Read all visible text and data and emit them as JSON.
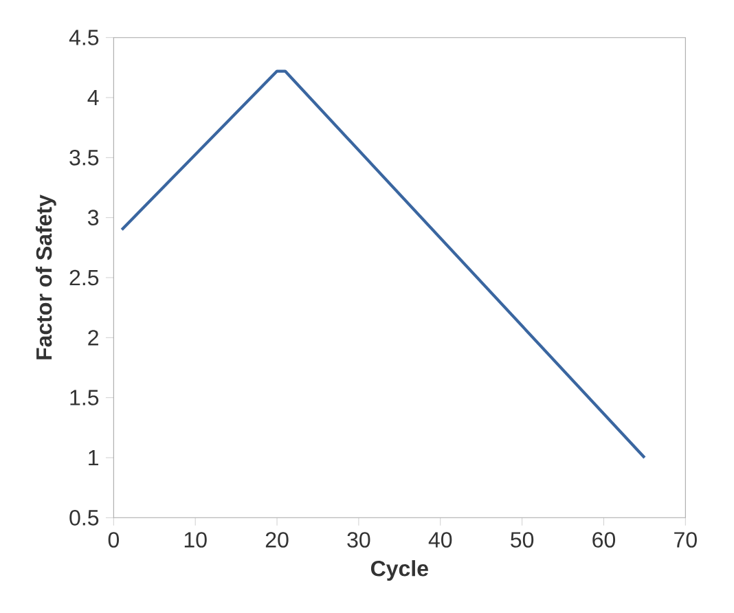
{
  "chart_data": {
    "type": "line",
    "xlabel": "Cycle",
    "ylabel": "Factor of Safety",
    "x": [
      1,
      20,
      21,
      65
    ],
    "values": [
      2.9,
      4.22,
      4.22,
      1.0
    ],
    "color": "#3a66a0",
    "xlim": [
      0,
      70
    ],
    "xticks": [
      0,
      10,
      20,
      30,
      40,
      50,
      60,
      70
    ],
    "ylim": [
      0.5,
      4.5
    ],
    "yticks": [
      0.5,
      1,
      1.5,
      2,
      2.5,
      3,
      3.5,
      4,
      4.5
    ],
    "grid": false,
    "marker": "none",
    "line_style": "solid"
  }
}
